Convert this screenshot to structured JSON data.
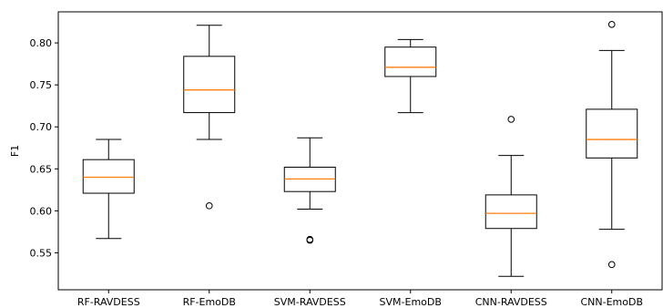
{
  "chart_data": {
    "type": "box",
    "title": "",
    "xlabel": "",
    "ylabel": "F1",
    "ylim": [
      0.506,
      0.837
    ],
    "yticks": [
      0.55,
      0.6,
      0.65,
      0.7,
      0.75,
      0.8
    ],
    "ytick_labels": [
      "0.55",
      "0.60",
      "0.65",
      "0.70",
      "0.75",
      "0.80"
    ],
    "categories": [
      "RF-RAVDESS",
      "RF-EmoDB",
      "SVM-RAVDESS",
      "SVM-EmoDB",
      "CNN-RAVDESS",
      "CNN-EmoDB"
    ],
    "boxes": [
      {
        "whislo": 0.567,
        "q1": 0.621,
        "med": 0.64,
        "q3": 0.661,
        "whishi": 0.685,
        "fliers": []
      },
      {
        "whislo": 0.685,
        "q1": 0.717,
        "med": 0.744,
        "q3": 0.784,
        "whishi": 0.821,
        "fliers": [
          0.606
        ]
      },
      {
        "whislo": 0.602,
        "q1": 0.623,
        "med": 0.638,
        "q3": 0.652,
        "whishi": 0.687,
        "fliers": [
          0.565,
          0.566
        ]
      },
      {
        "whislo": 0.717,
        "q1": 0.76,
        "med": 0.771,
        "q3": 0.795,
        "whishi": 0.804,
        "fliers": []
      },
      {
        "whislo": 0.522,
        "q1": 0.579,
        "med": 0.597,
        "q3": 0.619,
        "whishi": 0.666,
        "fliers": [
          0.709
        ]
      },
      {
        "whislo": 0.578,
        "q1": 0.663,
        "med": 0.685,
        "q3": 0.721,
        "whishi": 0.791,
        "fliers": [
          0.822,
          0.536
        ]
      }
    ],
    "grid": false,
    "legend": "none",
    "colors": {
      "box": "#000000",
      "median": "#ff7f0e",
      "flier": "#000000"
    }
  }
}
